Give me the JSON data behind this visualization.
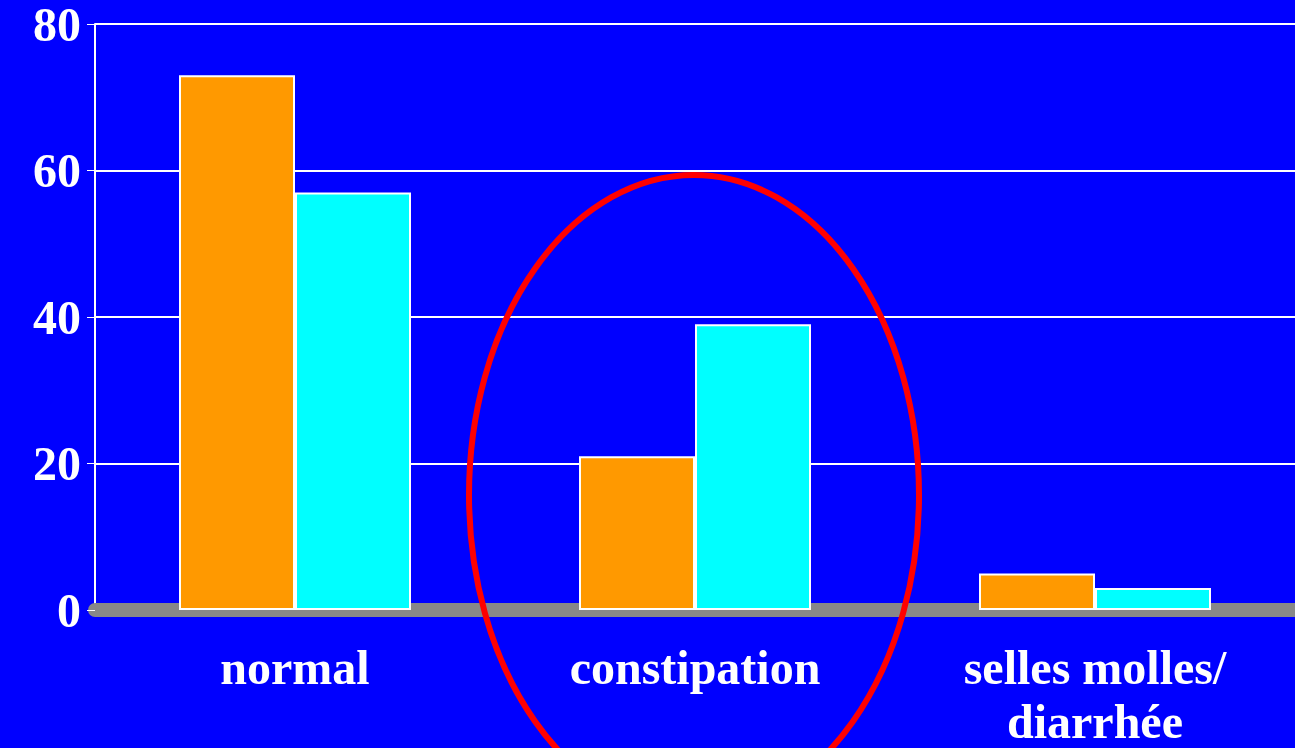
{
  "chart_data": {
    "type": "bar",
    "categories": [
      "normal",
      "constipation",
      "selles molles/diarrhée"
    ],
    "series": [
      {
        "color": "#ff9900",
        "values": [
          73,
          21,
          5
        ]
      },
      {
        "color": "#00ffff",
        "values": [
          57,
          39,
          3
        ]
      }
    ],
    "ylim": [
      0,
      80
    ],
    "yticks": [
      0,
      20,
      40,
      60,
      80
    ],
    "grid": "y"
  }
}
